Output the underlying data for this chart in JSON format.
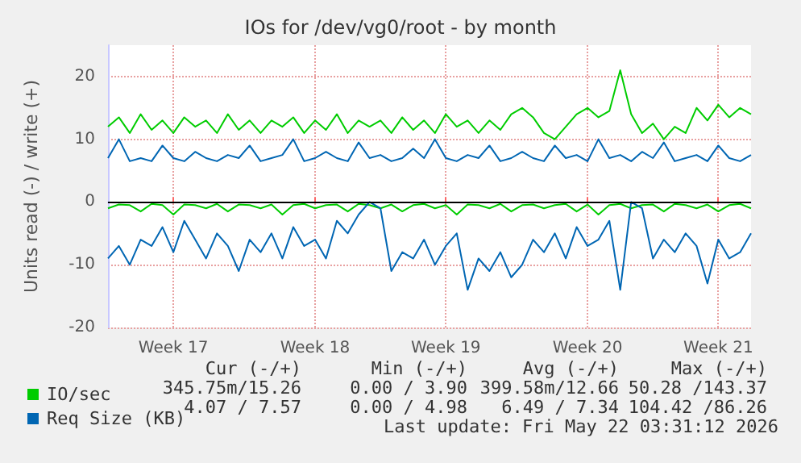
{
  "chart_data": {
    "type": "line",
    "title": "IOs for /dev/vg0/root - by month",
    "ylabel": "Units read (-) / write (+)",
    "categories": [
      null,
      null,
      null,
      null,
      null,
      null,
      "Week 17",
      null,
      null,
      null,
      null,
      null,
      null,
      null,
      null,
      null,
      null,
      null,
      null,
      "Week 18",
      null,
      null,
      null,
      null,
      null,
      null,
      null,
      null,
      null,
      null,
      null,
      "Week 19",
      null,
      null,
      null,
      null,
      null,
      null,
      null,
      null,
      null,
      null,
      null,
      null,
      "Week 20",
      null,
      null,
      null,
      null,
      null,
      null,
      null,
      null,
      null,
      null,
      null,
      "Week 21",
      null,
      null,
      null
    ],
    "ylim": [
      -20,
      25
    ],
    "yticks": [
      -20,
      -10,
      0,
      10,
      20
    ],
    "series": [
      {
        "name": "IO/sec",
        "color": "#00cc00",
        "values": [
          12,
          13.5,
          11,
          14,
          11.5,
          13,
          11,
          13.5,
          12,
          13,
          11,
          14,
          11.5,
          13,
          11,
          13,
          12,
          13.5,
          11,
          13,
          11.5,
          14,
          11,
          13,
          12,
          13,
          11,
          13.5,
          11.5,
          13,
          11,
          14,
          12,
          13,
          11,
          13,
          11.5,
          14,
          15,
          13.5,
          11,
          10,
          12,
          14,
          15,
          13.5,
          14.5,
          21,
          14,
          11,
          12.5,
          10,
          12,
          11,
          15,
          13,
          15.5,
          13.5,
          15,
          14
        ]
      },
      {
        "color": "#00cc00",
        "values": [
          -1,
          -0.4,
          -0.5,
          -1.5,
          -0.3,
          -0.5,
          -2,
          -0.4,
          -0.5,
          -1,
          -0.3,
          -1.5,
          -0.4,
          -0.5,
          -1,
          -0.4,
          -2,
          -0.5,
          -0.3,
          -1,
          -0.5,
          -0.4,
          -1.5,
          -0.3,
          -0.5,
          -1,
          -0.4,
          -1.5,
          -0.5,
          -0.3,
          -1,
          -0.5,
          -2,
          -0.4,
          -0.5,
          -1,
          -0.3,
          -1.5,
          -0.5,
          -0.4,
          -1,
          -0.5,
          -0.3,
          -1.5,
          -0.4,
          -2,
          -0.5,
          -0.3,
          -1,
          -0.5,
          -0.4,
          -1.5,
          -0.3,
          -0.5,
          -1,
          -0.4,
          -1.5,
          -0.5,
          -0.3,
          -1
        ]
      },
      {
        "name": "Req Size (KB)",
        "color": "#0066b3",
        "values": [
          7,
          10,
          6.5,
          7,
          6.5,
          9,
          7,
          6.5,
          8,
          7,
          6.5,
          7.5,
          7,
          9,
          6.5,
          7,
          7.5,
          10,
          6.5,
          7,
          8,
          7,
          6.5,
          9.5,
          7,
          7.5,
          6.5,
          7,
          8.5,
          7,
          10,
          7,
          6.5,
          7.5,
          7,
          9,
          6.5,
          7,
          8,
          7,
          6.5,
          9,
          7,
          7.5,
          6.5,
          10,
          7,
          7.5,
          6.5,
          8,
          7,
          9.5,
          6.5,
          7,
          7.5,
          6.5,
          9,
          7,
          6.5,
          7.5
        ]
      },
      {
        "color": "#0066b3",
        "values": [
          -9,
          -7,
          -10,
          -6,
          -7,
          -4,
          -8,
          -3,
          -6,
          -9,
          -5,
          -7,
          -11,
          -6,
          -8,
          -5,
          -9,
          -4,
          -7,
          -6,
          -9,
          -3,
          -5,
          -2,
          0,
          -1,
          -11,
          -8,
          -9,
          -6,
          -10,
          -7,
          -5,
          -14,
          -9,
          -11,
          -8,
          -12,
          -10,
          -6,
          -8,
          -5,
          -9,
          -4,
          -7,
          -6,
          -3,
          -14,
          0,
          -1,
          -9,
          -6,
          -8,
          -5,
          -7,
          -13,
          -6,
          -9,
          -8,
          -5
        ]
      }
    ],
    "ref_lines": [
      {
        "axis": "y",
        "value": 0,
        "color": "#000000"
      }
    ],
    "grid": true,
    "legend": "bottom",
    "marker": "none",
    "line_style": "solid",
    "annotations": [
      "Cur (-/+)",
      "Min (-/+)",
      "Avg (-/+)",
      "Max (-/+)",
      "345.75m/15.26",
      "0.00 / 3.90",
      "399.58m/12.66",
      "50.28 /143.37",
      "4.07 / 7.57",
      "0.00 / 4.98",
      "6.49 / 7.34",
      "104.42 /86.26",
      "Last update: Fri May 22 03:31:12 2026"
    ]
  }
}
